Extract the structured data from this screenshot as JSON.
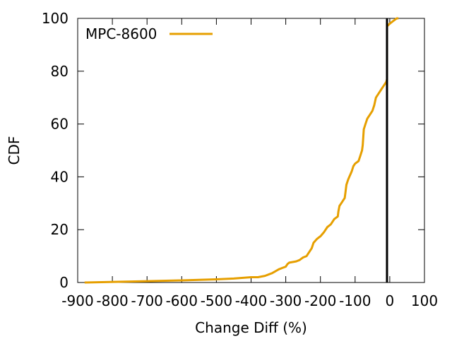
{
  "chart_data": {
    "type": "line",
    "title": "",
    "xlabel": "Change Diff (%)",
    "ylabel": "CDF",
    "xlim": [
      -900,
      100
    ],
    "ylim": [
      0,
      100
    ],
    "xticks": [
      -900,
      -800,
      -700,
      -600,
      -500,
      -400,
      -300,
      -200,
      -100,
      0,
      100
    ],
    "yticks": [
      0,
      20,
      40,
      60,
      80,
      100
    ],
    "xtick_labels": [
      "-900",
      "-800",
      "-700",
      "-600",
      "-500",
      "-400",
      "-300",
      "-200",
      "-100",
      "0",
      "100"
    ],
    "ytick_labels": [
      "0",
      "20",
      "40",
      "60",
      "80",
      "100"
    ],
    "grid": false,
    "legend_position": "top-left",
    "vertical_line": {
      "x": -8,
      "color": "#000000"
    },
    "series": [
      {
        "name": "MPC-8600",
        "color": "#e69f00",
        "x": [
          -880,
          -700,
          -600,
          -500,
          -450,
          -400,
          -380,
          -360,
          -340,
          -320,
          -310,
          -300,
          -295,
          -290,
          -270,
          -260,
          -255,
          -250,
          -240,
          -230,
          -225,
          -220,
          -210,
          -205,
          -200,
          -190,
          -180,
          -175,
          -170,
          -160,
          -150,
          -148,
          -145,
          -140,
          -130,
          -128,
          -125,
          -120,
          -110,
          -105,
          -100,
          -90,
          -85,
          -80,
          -78,
          -75,
          -70,
          -65,
          -60,
          -50,
          -45,
          -40,
          -30,
          -25,
          -20,
          -10,
          -8,
          -8,
          0,
          5,
          10,
          20,
          25
        ],
        "y": [
          0,
          0.5,
          0.8,
          1.2,
          1.5,
          2,
          2,
          2.5,
          3.5,
          5,
          5.5,
          6,
          7,
          7.5,
          8,
          8.5,
          9,
          9.5,
          10,
          12,
          13,
          15,
          16.5,
          17,
          17.5,
          19,
          21,
          21.5,
          22,
          24,
          25,
          27,
          29,
          30,
          32,
          34,
          37,
          39,
          42,
          44,
          45,
          46,
          48,
          50,
          52,
          58,
          60,
          62,
          63,
          65,
          67,
          70,
          72,
          73,
          74,
          76,
          77,
          97,
          98,
          98.5,
          99,
          100,
          100
        ]
      }
    ]
  }
}
